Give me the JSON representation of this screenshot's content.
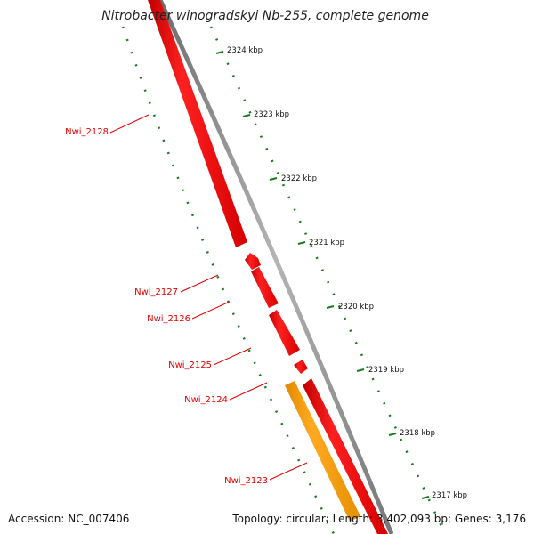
{
  "title": "Nitrobacter winogradskyi Nb-255, complete genome",
  "footer": {
    "accession": "Accession: NC_007406",
    "summary": "Topology: circular; Length: 3,402,093 bp; Genes: 3,176"
  },
  "ticks": [
    "2324 kbp",
    "2323 kbp",
    "2322 kbp",
    "2321 kbp",
    "2320 kbp",
    "2319 kbp",
    "2318 kbp",
    "2317 kbp"
  ],
  "genes": [
    "Nwi_2128",
    "Nwi_2127",
    "Nwi_2126",
    "Nwi_2125",
    "Nwi_2124",
    "Nwi_2123"
  ],
  "colors": {
    "gene_cds": "#ee0000",
    "gene_highlight": "#ff9900",
    "backbone": "#888888",
    "gc_marks": "#1a7a1a",
    "label_red": "#e00000"
  }
}
